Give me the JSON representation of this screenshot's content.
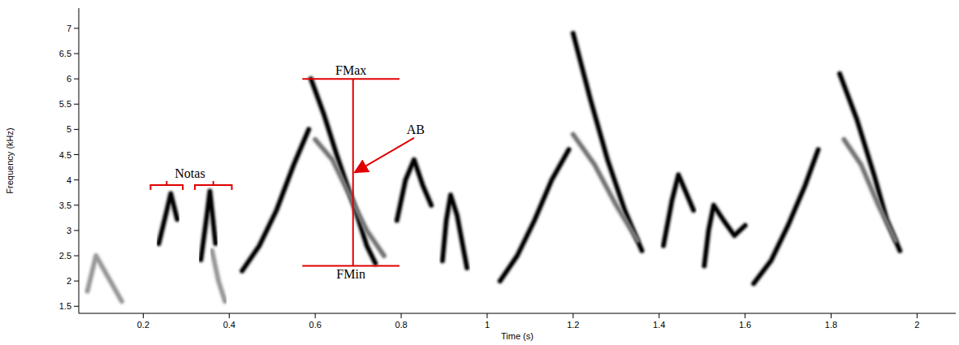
{
  "chart_data": {
    "type": "spectrogram",
    "xlabel": "Time (s)",
    "ylabel": "Frequency (kHz)",
    "xlim": [
      0.05,
      2.09
    ],
    "ylim": [
      1.36,
      7.4
    ],
    "xticks": [
      0.2,
      0.4,
      0.6,
      0.8,
      1,
      1.2,
      1.4,
      1.6,
      1.8,
      2
    ],
    "yticks": [
      1.5,
      2,
      2.5,
      3,
      3.5,
      4,
      4.5,
      5,
      5.5,
      6,
      6.5,
      7
    ],
    "series": [
      {
        "color": "#999999",
        "x": [
          0.07,
          0.09,
          0.11,
          0.13,
          0.15
        ],
        "values": [
          1.8,
          2.5,
          2.2,
          1.9,
          1.6
        ]
      },
      {
        "color": "#000000",
        "x": [
          0.236,
          0.255,
          0.264,
          0.279
        ],
        "values": [
          2.74,
          3.4,
          3.73,
          3.22
        ]
      },
      {
        "color": "#000000",
        "x": [
          0.334,
          0.348,
          0.355,
          0.368
        ],
        "values": [
          2.42,
          3.3,
          3.78,
          2.74
        ]
      },
      {
        "color": "#999999",
        "x": [
          0.36,
          0.375,
          0.39
        ],
        "values": [
          2.6,
          2.0,
          1.6
        ]
      },
      {
        "color": "#000000",
        "x": [
          0.43,
          0.47,
          0.51,
          0.55,
          0.585
        ],
        "values": [
          2.2,
          2.7,
          3.4,
          4.3,
          5.0
        ]
      },
      {
        "color": "#000000",
        "x": [
          0.59,
          0.62,
          0.65,
          0.69,
          0.72,
          0.74
        ],
        "values": [
          6.0,
          5.3,
          4.5,
          3.5,
          2.7,
          2.35
        ]
      },
      {
        "color": "#777777",
        "x": [
          0.6,
          0.64,
          0.68,
          0.72,
          0.76
        ],
        "values": [
          4.8,
          4.4,
          3.7,
          3.0,
          2.5
        ]
      },
      {
        "color": "#000000",
        "x": [
          0.79,
          0.81,
          0.83,
          0.85,
          0.87
        ],
        "values": [
          3.2,
          4.0,
          4.4,
          3.9,
          3.5
        ]
      },
      {
        "color": "#000000",
        "x": [
          0.896,
          0.905,
          0.915,
          0.93,
          0.953
        ],
        "values": [
          2.4,
          3.2,
          3.7,
          3.3,
          2.26
        ]
      },
      {
        "color": "#000000",
        "x": [
          1.03,
          1.07,
          1.11,
          1.15,
          1.19
        ],
        "values": [
          2.0,
          2.5,
          3.2,
          4.0,
          4.6
        ]
      },
      {
        "color": "#000000",
        "x": [
          1.2,
          1.24,
          1.28,
          1.32,
          1.36
        ],
        "values": [
          6.9,
          5.6,
          4.4,
          3.4,
          2.6
        ]
      },
      {
        "color": "#777777",
        "x": [
          1.2,
          1.25,
          1.3,
          1.35
        ],
        "values": [
          4.9,
          4.3,
          3.5,
          2.8
        ]
      },
      {
        "color": "#000000",
        "x": [
          1.41,
          1.43,
          1.445,
          1.46,
          1.48
        ],
        "values": [
          2.7,
          3.6,
          4.1,
          3.8,
          3.4
        ]
      },
      {
        "color": "#000000",
        "x": [
          1.505,
          1.515,
          1.527,
          1.55,
          1.575,
          1.6
        ],
        "values": [
          2.3,
          3.0,
          3.5,
          3.2,
          2.9,
          3.1
        ]
      },
      {
        "color": "#000000",
        "x": [
          1.62,
          1.66,
          1.7,
          1.74,
          1.77
        ],
        "values": [
          1.95,
          2.4,
          3.1,
          3.9,
          4.6
        ]
      },
      {
        "color": "#000000",
        "x": [
          1.82,
          1.86,
          1.9,
          1.93,
          1.96
        ],
        "values": [
          6.1,
          5.2,
          4.1,
          3.2,
          2.6
        ]
      },
      {
        "color": "#777777",
        "x": [
          1.83,
          1.87,
          1.91,
          1.95
        ],
        "values": [
          4.8,
          4.3,
          3.5,
          2.8
        ]
      }
    ],
    "annotations": {
      "color": "#e00000",
      "notes": {
        "label": "Notas",
        "spans": [
          [
            0.217,
            0.292
          ],
          [
            0.32,
            0.406
          ]
        ],
        "y": 3.9
      },
      "fmax": {
        "label": "FMax",
        "value": 6.0,
        "x": [
          0.57,
          0.796
        ]
      },
      "fmin": {
        "label": "FMin",
        "value": 2.3,
        "x": [
          0.57,
          0.796
        ]
      },
      "bandwidth": {
        "label": "AB",
        "x": 0.688,
        "arrow_from": [
          0.83,
          4.83
        ],
        "arrow_to": [
          0.692,
          4.15
        ]
      }
    }
  }
}
